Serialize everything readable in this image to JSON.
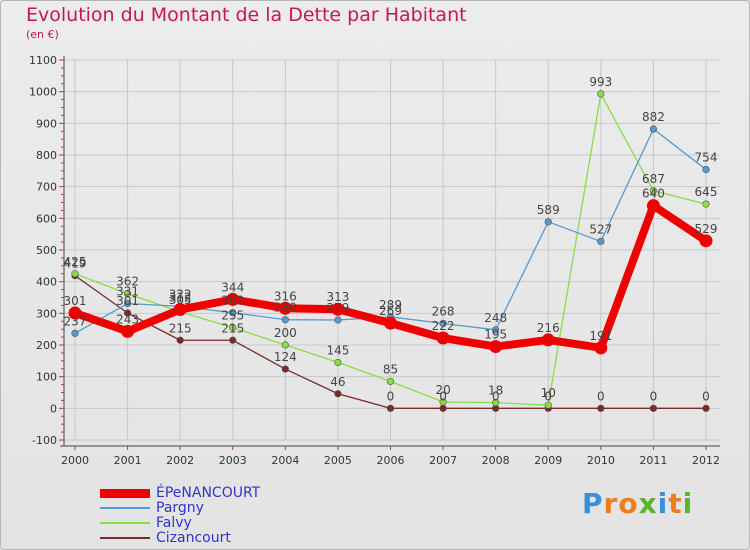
{
  "title": "Evolution du Montant de la Dette par Habitant",
  "subtitle": "(en €)",
  "logo": {
    "text": "Proxiti",
    "letter_colors": [
      "#3a8fd8",
      "#ee7d1a",
      "#ee7d1a",
      "#59b52b",
      "#3a8fd8",
      "#ee7d1a",
      "#59b52b"
    ]
  },
  "chart_data": {
    "type": "line",
    "title": "Evolution du Montant de la Dette par Habitant",
    "ylabel": "(en €)",
    "xlabel": "",
    "x": [
      "2000",
      "2001",
      "2002",
      "2003",
      "2004",
      "2005",
      "2006",
      "2007",
      "2008",
      "2009",
      "2010",
      "2011",
      "2012"
    ],
    "ylim": [
      -100,
      1100
    ],
    "yticks": [
      -100,
      0,
      100,
      200,
      300,
      400,
      500,
      600,
      700,
      800,
      900,
      1000,
      1100
    ],
    "grid": true,
    "legend": "bottom-left",
    "series": [
      {
        "name": "ÉPeNANCOURT",
        "color": "#ee0000",
        "width": 8,
        "values": [
          301,
          243,
          312,
          344,
          316,
          313,
          269,
          222,
          195,
          216,
          191,
          640,
          529
        ]
      },
      {
        "name": "Pargny",
        "color": "#5599d0",
        "width": 1.3,
        "values": [
          237,
          331,
          322,
          302,
          280,
          279,
          289,
          268,
          248,
          589,
          527,
          882,
          754
        ]
      },
      {
        "name": "Falvy",
        "color": "#88dd44",
        "width": 1.3,
        "values": [
          425,
          362,
          305,
          255,
          200,
          145,
          85,
          20,
          18,
          10,
          993,
          687,
          645
        ]
      },
      {
        "name": "Cizancourt",
        "color": "#7a2a2a",
        "width": 1.3,
        "values": [
          419,
          301,
          215,
          215,
          124,
          46,
          0,
          0,
          0,
          0,
          0,
          0,
          0
        ]
      }
    ]
  }
}
